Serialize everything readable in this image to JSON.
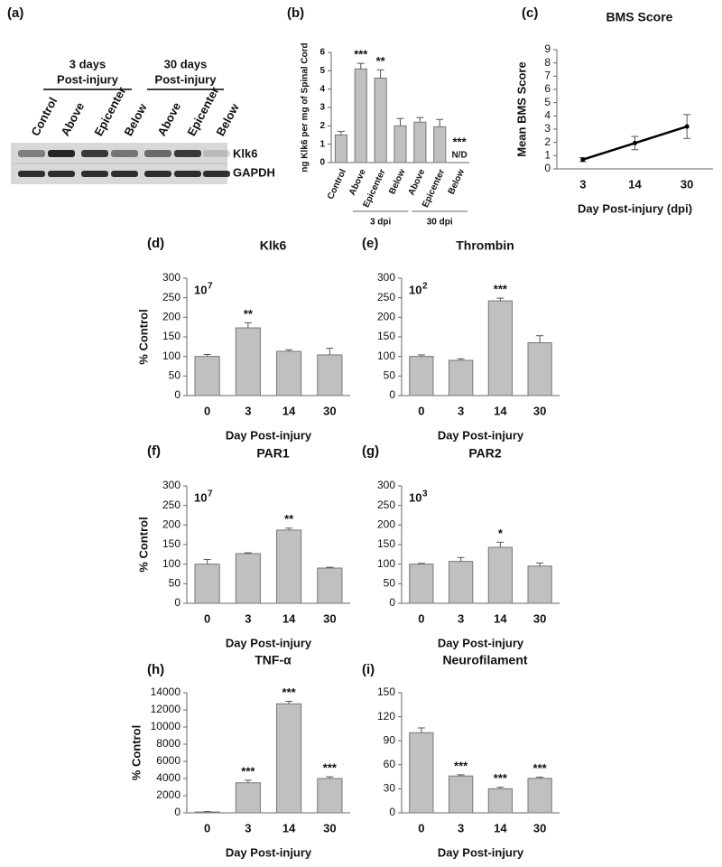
{
  "blot": {
    "panel": "(a)",
    "lanes": [
      "Control",
      "Above",
      "Epicenter",
      "Below",
      "Above",
      "Epicenter",
      "Below"
    ],
    "groups": [
      {
        "lines": [
          "3 days",
          "Post-injury"
        ]
      },
      {
        "lines": [
          "30 days",
          "Post-injury"
        ]
      }
    ],
    "bands": [
      "Klk6",
      "GAPDH"
    ]
  },
  "chart_data": [
    {
      "type": "bar",
      "panel": "(b)",
      "ylabel": "ng Klk6 per mg of Spinal Cord",
      "categories": [
        "Control",
        "Above",
        "Epicenter",
        "Below",
        "Above",
        "Epicenter",
        "Below"
      ],
      "values": [
        1.5,
        5.1,
        4.6,
        2.0,
        2.2,
        1.95,
        null
      ],
      "errors": [
        0.2,
        0.3,
        0.45,
        0.4,
        0.25,
        0.4,
        null
      ],
      "value_labels": [
        null,
        null,
        null,
        null,
        null,
        null,
        "N/D"
      ],
      "significance": [
        null,
        "***",
        "**",
        null,
        null,
        null,
        "***"
      ],
      "groups": [
        {
          "label": "3 dpi",
          "start": 1,
          "end": 3
        },
        {
          "label": "30 dpi",
          "start": 4,
          "end": 6
        }
      ],
      "ylim": [
        0,
        6
      ],
      "yticks": [
        0,
        1,
        2,
        3,
        4,
        5,
        6
      ],
      "color": "#c0c0c0"
    },
    {
      "type": "line",
      "panel": "(c)",
      "title": "BMS Score",
      "xlabel": "Day Post-injury (dpi)",
      "ylabel": "Mean BMS Score",
      "categories": [
        "3",
        "14",
        "30"
      ],
      "values": [
        0.7,
        1.95,
        3.2
      ],
      "errors": [
        0.15,
        0.5,
        0.9
      ],
      "ylim": [
        0,
        9
      ],
      "yticks": [
        0,
        1,
        2,
        3,
        4,
        5,
        6,
        7,
        8,
        9
      ],
      "color": "#000000"
    },
    {
      "type": "bar",
      "panel": "(d)",
      "title": "Klk6",
      "xlabel": "Day Post-injury",
      "ylabel": "% Control",
      "note": {
        "base": "10",
        "exponent": "7"
      },
      "categories": [
        "0",
        "3",
        "14",
        "30"
      ],
      "values": [
        100,
        173,
        113,
        104
      ],
      "errors": [
        5,
        13,
        4,
        17
      ],
      "significance": [
        null,
        "**",
        null,
        null
      ],
      "ylim": [
        0,
        300
      ],
      "yticks": [
        0,
        50,
        100,
        150,
        200,
        250,
        300
      ],
      "color": "#c0c0c0"
    },
    {
      "type": "bar",
      "panel": "(e)",
      "title": "Thrombin",
      "xlabel": "Day Post-injury",
      "note": {
        "base": "10",
        "exponent": "2"
      },
      "categories": [
        "0",
        "3",
        "14",
        "30"
      ],
      "values": [
        100,
        90,
        242,
        135
      ],
      "errors": [
        4,
        4,
        7,
        18
      ],
      "significance": [
        null,
        null,
        "***",
        null
      ],
      "ylim": [
        0,
        300
      ],
      "yticks": [
        0,
        50,
        100,
        150,
        200,
        250,
        300
      ],
      "color": "#c0c0c0"
    },
    {
      "type": "bar",
      "panel": "(f)",
      "title": "PAR1",
      "xlabel": "Day Post-injury",
      "ylabel": "% Control",
      "note": {
        "base": "10",
        "exponent": "7"
      },
      "categories": [
        "0",
        "3",
        "14",
        "30"
      ],
      "values": [
        100,
        127,
        187,
        90
      ],
      "errors": [
        12,
        2,
        5,
        2
      ],
      "significance": [
        null,
        null,
        "**",
        null
      ],
      "ylim": [
        0,
        300
      ],
      "yticks": [
        0,
        50,
        100,
        150,
        200,
        250,
        300
      ],
      "color": "#c0c0c0"
    },
    {
      "type": "bar",
      "panel": "(g)",
      "title": "PAR2",
      "xlabel": "Day Post-injury",
      "note": {
        "base": "10",
        "exponent": "3"
      },
      "categories": [
        "0",
        "3",
        "14",
        "30"
      ],
      "values": [
        100,
        107,
        143,
        95
      ],
      "errors": [
        2,
        10,
        13,
        8
      ],
      "significance": [
        null,
        null,
        "*",
        null
      ],
      "ylim": [
        0,
        300
      ],
      "yticks": [
        0,
        50,
        100,
        150,
        200,
        250,
        300
      ],
      "color": "#c0c0c0"
    },
    {
      "type": "bar",
      "panel": "(h)",
      "title": "TNF-α",
      "xlabel": "Day Post-injury",
      "ylabel": "% Control",
      "categories": [
        "0",
        "3",
        "14",
        "30"
      ],
      "values": [
        100,
        3500,
        12700,
        4000
      ],
      "errors": [
        50,
        300,
        300,
        200
      ],
      "significance": [
        null,
        "***",
        "***",
        "***"
      ],
      "ylim": [
        0,
        14000
      ],
      "yticks": [
        0,
        2000,
        4000,
        6000,
        8000,
        10000,
        12000,
        14000
      ],
      "color": "#c0c0c0"
    },
    {
      "type": "bar",
      "panel": "(i)",
      "title": "Neurofilament",
      "xlabel": "Day Post-injury",
      "categories": [
        "0",
        "3",
        "14",
        "30"
      ],
      "values": [
        100,
        46,
        30,
        43
      ],
      "errors": [
        6,
        1.5,
        2,
        1.5
      ],
      "significance": [
        null,
        "***",
        "***",
        "***"
      ],
      "ylim": [
        0,
        150
      ],
      "yticks": [
        0,
        30,
        60,
        90,
        120,
        150
      ],
      "color": "#c0c0c0"
    }
  ]
}
